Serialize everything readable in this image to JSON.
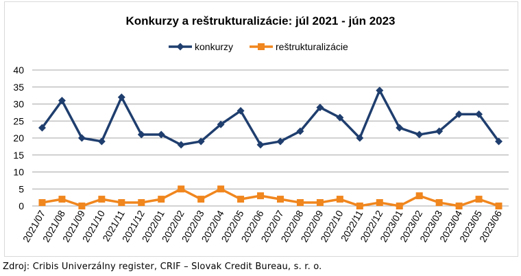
{
  "chart_data": {
    "type": "line",
    "title": "Konkurzy a reštrukturalizácie: júl 2021 - jún 2023",
    "xlabel": "",
    "ylabel": "",
    "ylim": [
      0,
      40
    ],
    "yticks": [
      "0",
      "5",
      "10",
      "15",
      "20",
      "25",
      "30",
      "35",
      "40"
    ],
    "grid": true,
    "legend_position": "top",
    "categories": [
      "2021/07",
      "2021/08",
      "2021/09",
      "2021/10",
      "2021/11",
      "2021/12",
      "2022/01",
      "2022/02",
      "2022/03",
      "2022/04",
      "2022/05",
      "2022/06",
      "2022/07",
      "2022/08",
      "2022/09",
      "2022/10",
      "2022/11",
      "2022/12",
      "2023/01",
      "2023/02",
      "2023/03",
      "2023/04",
      "2023/05",
      "2023/06"
    ],
    "series": [
      {
        "name": "konkurzy",
        "color": "#1f3e6e",
        "marker": "diamond",
        "values": [
          23,
          31,
          20,
          19,
          32,
          21,
          21,
          18,
          19,
          24,
          28,
          18,
          19,
          22,
          29,
          26,
          20,
          34,
          23,
          21,
          22,
          27,
          27,
          19
        ]
      },
      {
        "name": "reštrukturalizácie",
        "color": "#f0861e",
        "marker": "square",
        "values": [
          1,
          2,
          0,
          2,
          1,
          1,
          2,
          5,
          2,
          5,
          2,
          3,
          2,
          1,
          1,
          2,
          0,
          1,
          0,
          3,
          1,
          0,
          2,
          0
        ]
      }
    ]
  },
  "source": "Zdroj: Cribis Univerzálny register, CRIF – Slovak Credit Bureau, s. r. o."
}
